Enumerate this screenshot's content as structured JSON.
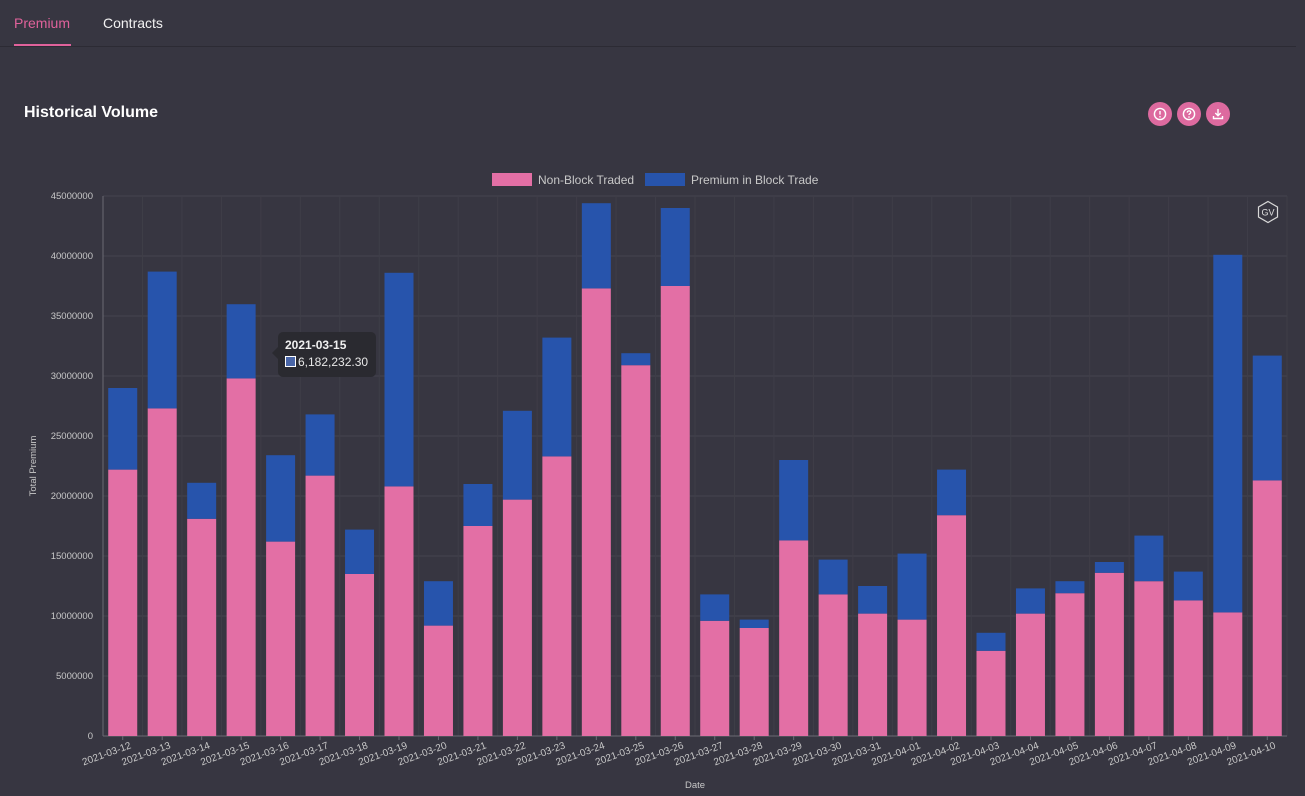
{
  "tabs": [
    {
      "label": "Premium",
      "active": true
    },
    {
      "label": "Contracts",
      "active": false
    }
  ],
  "header": {
    "title": "Historical Volume",
    "icons": [
      "info-icon",
      "help-icon",
      "download-icon"
    ],
    "accent_color": "#dd6a9f"
  },
  "tooltip": {
    "title": "2021-03-15",
    "value": "6,182,232.30"
  },
  "watermark": {
    "text": "GV"
  },
  "chart_data": {
    "type": "bar",
    "stacked": true,
    "title": "",
    "xlabel": "Date",
    "ylabel": "Total Premium",
    "ylim": [
      0,
      45000000
    ],
    "yticks": [
      "0",
      "5000000",
      "10000000",
      "15000000",
      "20000000",
      "25000000",
      "30000000",
      "35000000",
      "40000000",
      "45000000"
    ],
    "grid": true,
    "legend_position": "top-center",
    "categories": [
      "2021-03-12",
      "2021-03-13",
      "2021-03-14",
      "2021-03-15",
      "2021-03-16",
      "2021-03-17",
      "2021-03-18",
      "2021-03-19",
      "2021-03-20",
      "2021-03-21",
      "2021-03-22",
      "2021-03-23",
      "2021-03-24",
      "2021-03-25",
      "2021-03-26",
      "2021-03-27",
      "2021-03-28",
      "2021-03-29",
      "2021-03-30",
      "2021-03-31",
      "2021-04-01",
      "2021-04-02",
      "2021-04-03",
      "2021-04-04",
      "2021-04-05",
      "2021-04-06",
      "2021-04-07",
      "2021-04-08",
      "2021-04-09",
      "2021-04-10"
    ],
    "series": [
      {
        "name": "Non-Block Traded",
        "color": "#e36fa5",
        "values": [
          22200000,
          27300000,
          18100000,
          29800000,
          16200000,
          21700000,
          13500000,
          20800000,
          9200000,
          17500000,
          19700000,
          23300000,
          37300000,
          30900000,
          37500000,
          9600000,
          9000000,
          16300000,
          11800000,
          10200000,
          9700000,
          18400000,
          7100000,
          10200000,
          11900000,
          13600000,
          12900000,
          11300000,
          10300000,
          21300000
        ]
      },
      {
        "name": "Premium in Block Trade",
        "color": "#2754ac",
        "values": [
          6800000,
          11400000,
          3000000,
          6182232.3,
          7200000,
          5100000,
          3700000,
          17800000,
          3700000,
          3500000,
          7400000,
          9900000,
          7100000,
          1000000,
          6500000,
          2200000,
          700000,
          6700000,
          2900000,
          2300000,
          5500000,
          3800000,
          1500000,
          2100000,
          1000000,
          900000,
          3800000,
          2400000,
          29800000,
          10400000
        ]
      }
    ]
  }
}
